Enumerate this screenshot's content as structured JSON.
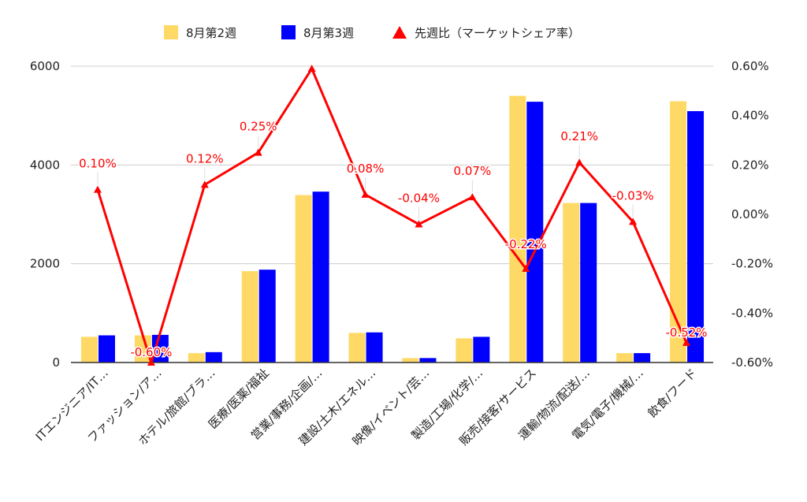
{
  "chart_data": {
    "type": "bar",
    "categories": [
      "ITエンジニア/IT…",
      "ファッション/ア…",
      "ホテル/旅館/ブラ…",
      "医療/医薬/福祉",
      "営業/事務/企画/…",
      "建設/土木/エネル…",
      "映像/イベント/芸…",
      "製造/工場/化学/…",
      "販売/接客/サービス",
      "運輸/物流/配送/…",
      "電気/電子/機械/…",
      "飲食/フード"
    ],
    "series": [
      {
        "name": "8月第2週",
        "type": "bar",
        "axis": "left",
        "color": "#FFD966",
        "values": [
          520,
          550,
          190,
          1850,
          3390,
          600,
          90,
          490,
          5400,
          3230,
          190,
          5290
        ]
      },
      {
        "name": "8月第3週",
        "type": "bar",
        "axis": "left",
        "color": "#0000FF",
        "values": [
          550,
          560,
          210,
          1880,
          3460,
          610,
          90,
          520,
          5280,
          3230,
          190,
          5090
        ]
      },
      {
        "name": "先週比（マーケットシェア率）",
        "type": "line",
        "axis": "right",
        "color": "#FF0000",
        "values": [
          0.1,
          -0.6,
          0.12,
          0.25,
          0.59,
          0.08,
          -0.04,
          0.07,
          -0.22,
          0.21,
          -0.03,
          -0.52
        ],
        "data_labels": [
          "0.10%",
          "-0.60%",
          "0.12%",
          "0.25%",
          "",
          "0.08%",
          "-0.04%",
          "0.07%",
          "-0.22%",
          "0.21%",
          "-0.03%",
          "-0.52%"
        ]
      }
    ],
    "left_axis": {
      "ylim": [
        0,
        6000
      ],
      "ticks": [
        "0",
        "2000",
        "4000",
        "6000"
      ],
      "tick_values": [
        0,
        2000,
        4000,
        6000
      ]
    },
    "right_axis": {
      "ylim": [
        -0.6,
        0.6
      ],
      "ticks": [
        "-0.60%",
        "-0.40%",
        "-0.20%",
        "0.00%",
        "0.20%",
        "0.40%",
        "0.60%"
      ],
      "tick_values": [
        -0.6,
        -0.4,
        -0.2,
        0.0,
        0.2,
        0.4,
        0.6
      ]
    },
    "grid": true,
    "legend": "top-center"
  }
}
